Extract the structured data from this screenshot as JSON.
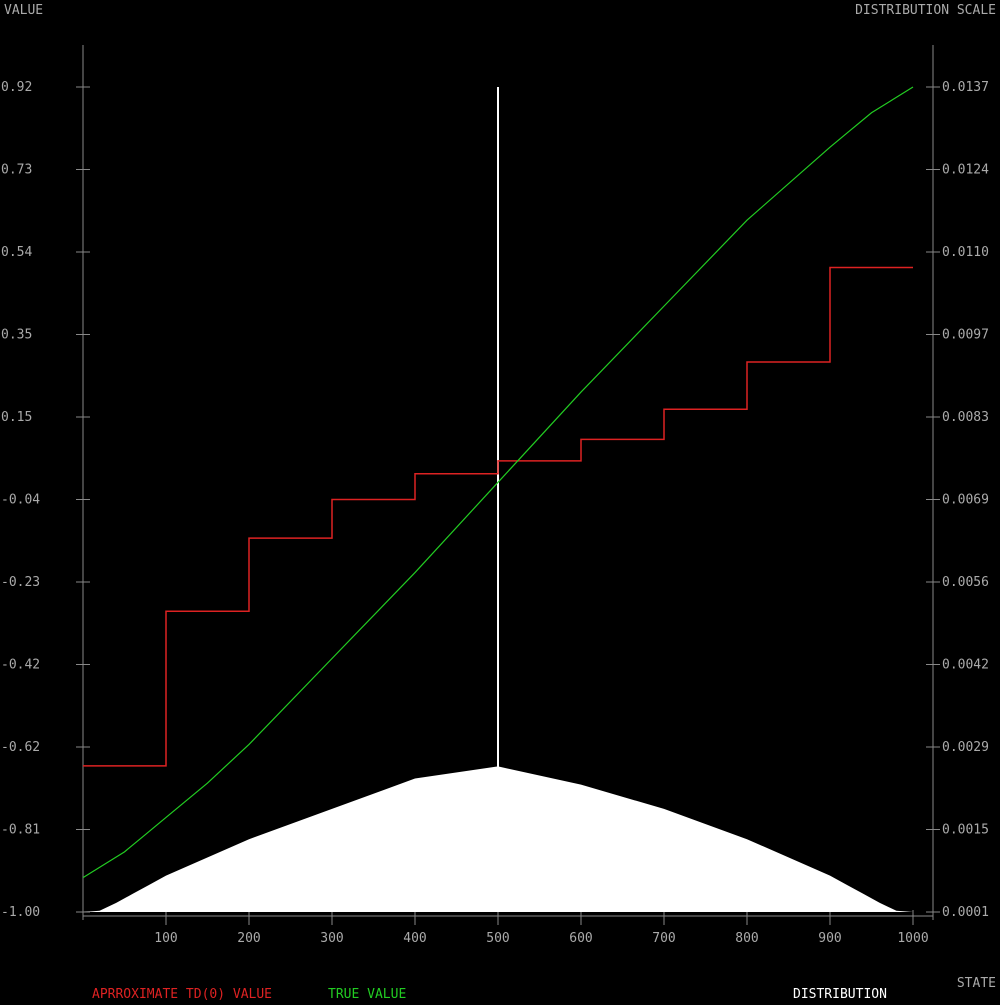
{
  "chart_data": {
    "type": "line",
    "y_left_label": "VALUE",
    "y_right_label": "DISTRIBUTION SCALE",
    "x_label": "STATE",
    "x_ticks": [
      100,
      200,
      300,
      400,
      500,
      600,
      700,
      800,
      900,
      1000
    ],
    "x_range": [
      0,
      1000
    ],
    "y_left_ticks": [
      "0.92",
      "0.73",
      "0.54",
      "0.35",
      "0.15",
      "-0.04",
      "-0.23",
      "-0.42",
      "-0.62",
      "-0.81",
      "-1.00"
    ],
    "y_left_range": [
      -1.0,
      0.92
    ],
    "y_right_ticks": [
      "0.0137",
      "0.0124",
      "0.0110",
      "0.0097",
      "0.0083",
      "0.0069",
      "0.0056",
      "0.0042",
      "0.0029",
      "0.0015",
      "0.0001"
    ],
    "y_right_range": [
      0.0001,
      0.0137
    ],
    "grid": false,
    "legend_position": "bottom",
    "legend": {
      "approx": "APRROXIMATE TD(0) VALUE",
      "true": "TRUE VALUE",
      "distribution": "DISTRIBUTION"
    },
    "colors": {
      "approx": "#dd2222",
      "true": "#22cc22",
      "distribution": "#ffffff",
      "axis": "#888888",
      "text": "#aaaaaa"
    },
    "series": [
      {
        "name": "APRROXIMATE TD(0) VALUE",
        "kind": "step",
        "group_edges": [
          0,
          100,
          200,
          300,
          400,
          500,
          600,
          700,
          800,
          900,
          1000
        ],
        "values": [
          -0.66,
          -0.3,
          -0.13,
          -0.04,
          0.02,
          0.05,
          0.1,
          0.17,
          0.28,
          0.5
        ]
      },
      {
        "name": "TRUE VALUE",
        "kind": "line",
        "x": [
          0,
          25,
          50,
          75,
          100,
          150,
          200,
          300,
          400,
          500,
          600,
          700,
          800,
          900,
          925,
          950,
          975,
          1000
        ],
        "y": [
          -0.92,
          -0.89,
          -0.86,
          -0.82,
          -0.78,
          -0.7,
          -0.61,
          -0.41,
          -0.21,
          0.0,
          0.21,
          0.41,
          0.61,
          0.78,
          0.82,
          0.86,
          0.89,
          0.92
        ]
      },
      {
        "name": "DISTRIBUTION",
        "kind": "area",
        "axis": "right",
        "x": [
          0,
          20,
          40,
          60,
          80,
          100,
          200,
          300,
          400,
          500,
          600,
          700,
          800,
          900,
          920,
          940,
          960,
          980,
          1000
        ],
        "y": [
          0.0001,
          0.00012,
          0.00025,
          0.0004,
          0.00055,
          0.0007,
          0.0013,
          0.0018,
          0.0023,
          0.0025,
          0.0022,
          0.0018,
          0.0013,
          0.0007,
          0.00055,
          0.0004,
          0.00025,
          0.00012,
          0.0001
        ],
        "spike_state": 500,
        "spike_value": 0.0137
      }
    ]
  }
}
